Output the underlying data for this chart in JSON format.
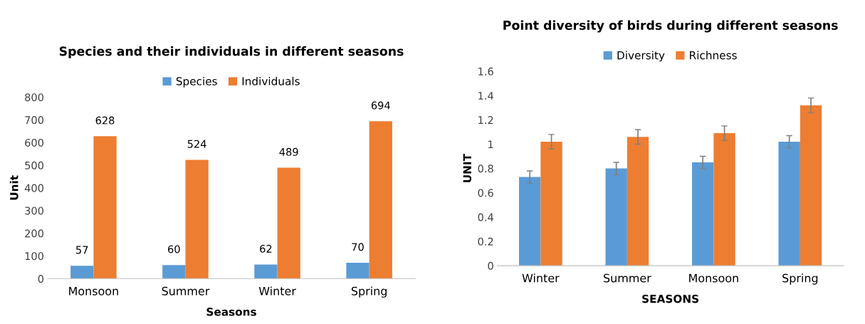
{
  "chart_data": [
    {
      "type": "bar",
      "title": "Species and their individuals in different seasons",
      "xlabel": "Seasons",
      "ylabel": "Unit",
      "categories": [
        "Monsoon",
        "Summer",
        "Winter",
        "Spring"
      ],
      "series": [
        {
          "name": "Species",
          "color": "#5b9bd5",
          "values": [
            57,
            60,
            62,
            70
          ]
        },
        {
          "name": "Individuals",
          "color": "#ed7d31",
          "values": [
            628,
            524,
            489,
            694
          ]
        }
      ],
      "ylim": [
        0,
        800
      ],
      "yticks": [
        0,
        100,
        200,
        300,
        400,
        500,
        600,
        700,
        800
      ],
      "data_labels": true,
      "legend": "top",
      "grid": false
    },
    {
      "type": "bar",
      "title": "Point diversity of birds during different seasons",
      "xlabel": "SEASONS",
      "ylabel": "UNIT",
      "categories": [
        "Winter",
        "Summer",
        "Monsoon",
        "Spring"
      ],
      "series": [
        {
          "name": "Diversity",
          "color": "#5b9bd5",
          "values": [
            0.73,
            0.8,
            0.85,
            1.02
          ],
          "errors": [
            0.05,
            0.05,
            0.05,
            0.05
          ]
        },
        {
          "name": "Richness",
          "color": "#ed7d31",
          "values": [
            1.02,
            1.06,
            1.09,
            1.32
          ],
          "errors": [
            0.06,
            0.06,
            0.06,
            0.06
          ]
        }
      ],
      "ylim": [
        0,
        1.6
      ],
      "yticks": [
        0,
        0.2,
        0.4,
        0.6,
        0.8,
        1,
        1.2,
        1.4,
        1.6
      ],
      "legend": "top",
      "grid": false
    }
  ]
}
